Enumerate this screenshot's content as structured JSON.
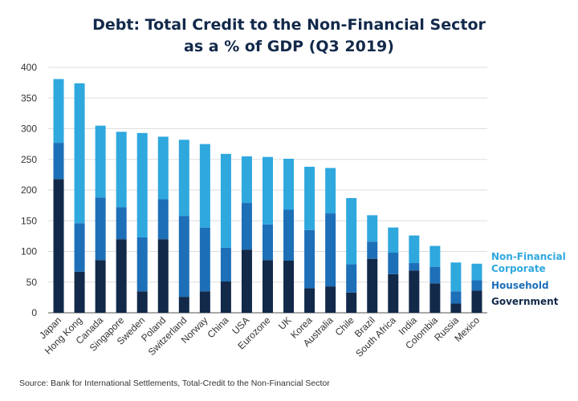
{
  "title": {
    "line1": "Debt: Total Credit to the Non-Financial Sector",
    "line2": "as a % of GDP (Q3 2019)"
  },
  "source": "Source: Bank for International Settlements, Total-Credit to the Non-Financial Sector",
  "colors": {
    "government": "#12294a",
    "household": "#1d6fb8",
    "corporate": "#2fa8de",
    "grid": "#dddddd",
    "axis": "#555555"
  },
  "chart_data": {
    "type": "bar",
    "stacked": true,
    "title": "Debt: Total Credit to the Non-Financial Sector as a % of GDP (Q3 2019)",
    "xlabel": "",
    "ylabel": "",
    "ylim": [
      0,
      400
    ],
    "yticks": [
      0,
      50,
      100,
      150,
      200,
      250,
      300,
      350,
      400
    ],
    "grid": true,
    "legend_position": "right",
    "categories": [
      "Japan",
      "Hong Kong",
      "Canada",
      "Singapore",
      "Sweden",
      "Poland",
      "Switzerland",
      "Norway",
      "China",
      "USA",
      "Eurozone",
      "UK",
      "Korea",
      "Australia",
      "Chile",
      "Brazil",
      "South Africa",
      "India",
      "Colombia",
      "Russia",
      "Mexico"
    ],
    "series": [
      {
        "name": "Government",
        "color": "#12294a",
        "values": [
          218,
          67,
          86,
          120,
          35,
          120,
          26,
          35,
          51,
          103,
          86,
          85,
          40,
          43,
          33,
          88,
          63,
          69,
          48,
          15,
          36
        ]
      },
      {
        "name": "Household",
        "color": "#1d6fb8",
        "values": [
          59,
          79,
          102,
          52,
          88,
          65,
          132,
          104,
          55,
          76,
          58,
          83,
          95,
          119,
          46,
          28,
          35,
          12,
          27,
          20,
          17
        ]
      },
      {
        "name": "Non-Financial Corporate",
        "color": "#2fa8de",
        "values": [
          104,
          228,
          117,
          123,
          170,
          102,
          124,
          136,
          153,
          76,
          110,
          83,
          103,
          74,
          108,
          43,
          41,
          45,
          34,
          47,
          27
        ]
      }
    ],
    "legend": [
      "Non-Financial Corporate",
      "Household",
      "Government"
    ]
  }
}
